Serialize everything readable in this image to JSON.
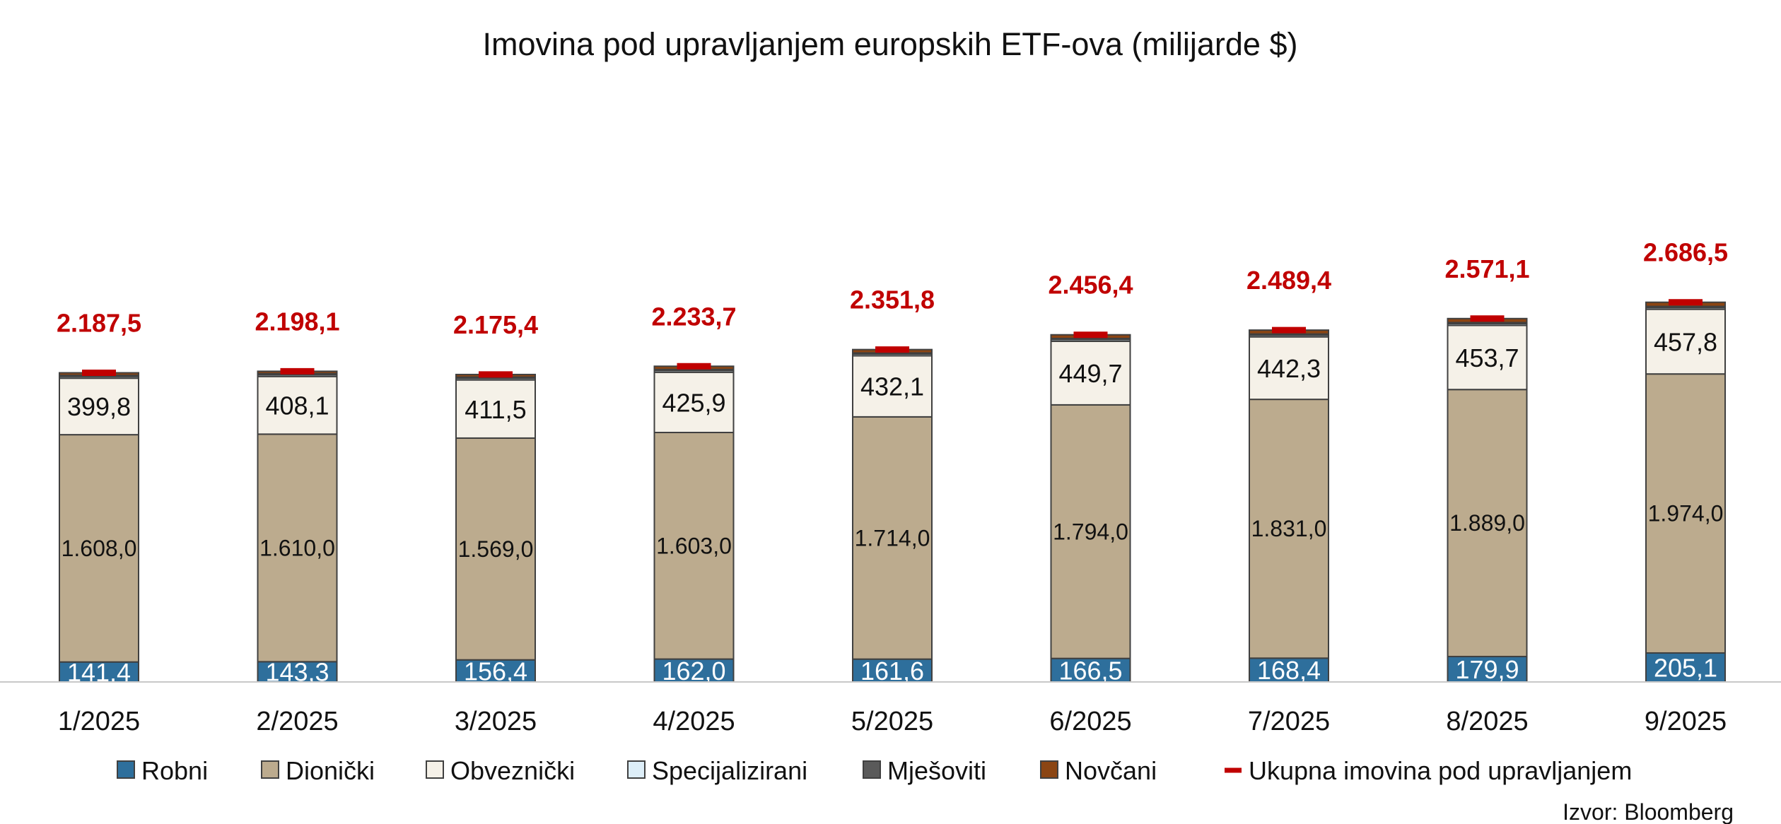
{
  "chart_data": {
    "type": "bar",
    "stacked": true,
    "title": "Imovina pod upravljanjem europskih ETF-ova (milijarde $)",
    "categories": [
      "1/2025",
      "2/2025",
      "3/2025",
      "4/2025",
      "5/2025",
      "6/2025",
      "7/2025",
      "8/2025",
      "9/2025"
    ],
    "series": [
      {
        "name": "Robni",
        "color": "#2e6f9c",
        "label_color": "#ffffff",
        "values": [
          141.4,
          143.3,
          156.4,
          162.0,
          161.6,
          166.5,
          168.4,
          179.9,
          205.1
        ],
        "labels": [
          "141,4",
          "143,3",
          "156,4",
          "162,0",
          "161,6",
          "166,5",
          "168,4",
          "179,9",
          "205,1"
        ]
      },
      {
        "name": "Dionički",
        "color": "#bcab8e",
        "label_color": "#111111",
        "values": [
          1608.0,
          1610.0,
          1569.0,
          1603.0,
          1714.0,
          1794.0,
          1831.0,
          1889.0,
          1974.0
        ],
        "labels": [
          "1.608,0",
          "1.610,0",
          "1.569,0",
          "1.603,0",
          "1.714,0",
          "1.794,0",
          "1.831,0",
          "1.889,0",
          "1.974,0"
        ]
      },
      {
        "name": "Obveznički",
        "color": "#f5f1e8",
        "label_color": "#111111",
        "values": [
          399.8,
          408.1,
          411.5,
          425.9,
          432.1,
          449.7,
          442.3,
          453.7,
          457.8
        ],
        "labels": [
          "399,8",
          "408,1",
          "411,5",
          "425,9",
          "432,1",
          "449,7",
          "442,3",
          "453,7",
          "457,8"
        ]
      },
      {
        "name": "Specijalizirani",
        "color": "#ddeef8",
        "values": [
          12.0,
          12.0,
          12.0,
          12.0,
          12.0,
          12.0,
          12.0,
          12.0,
          12.0
        ]
      },
      {
        "name": "Mješoviti",
        "color": "#5a5a5a",
        "values": [
          8.0,
          8.0,
          8.0,
          8.0,
          8.0,
          8.0,
          8.0,
          8.0,
          8.0
        ]
      },
      {
        "name": "Novčani",
        "color": "#8b4513",
        "values": [
          18.3,
          16.7,
          18.5,
          22.8,
          24.1,
          26.2,
          27.7,
          28.5,
          29.6
        ]
      }
    ],
    "totals": {
      "name": "Ukupna imovina pod upravljanjem",
      "color": "#c00000",
      "values": [
        2187.5,
        2198.1,
        2175.4,
        2233.7,
        2351.8,
        2456.4,
        2489.4,
        2571.1,
        2686.5
      ],
      "labels": [
        "2.187,5",
        "2.198,1",
        "2.175,4",
        "2.233,7",
        "2.351,8",
        "2.456,4",
        "2.489,4",
        "2.571,1",
        "2.686,5"
      ]
    },
    "ylim": [
      0,
      2700
    ],
    "grid": false,
    "legend_position": "bottom",
    "xlabel": "",
    "ylabel": ""
  },
  "source": "Izvor: Bloomberg"
}
